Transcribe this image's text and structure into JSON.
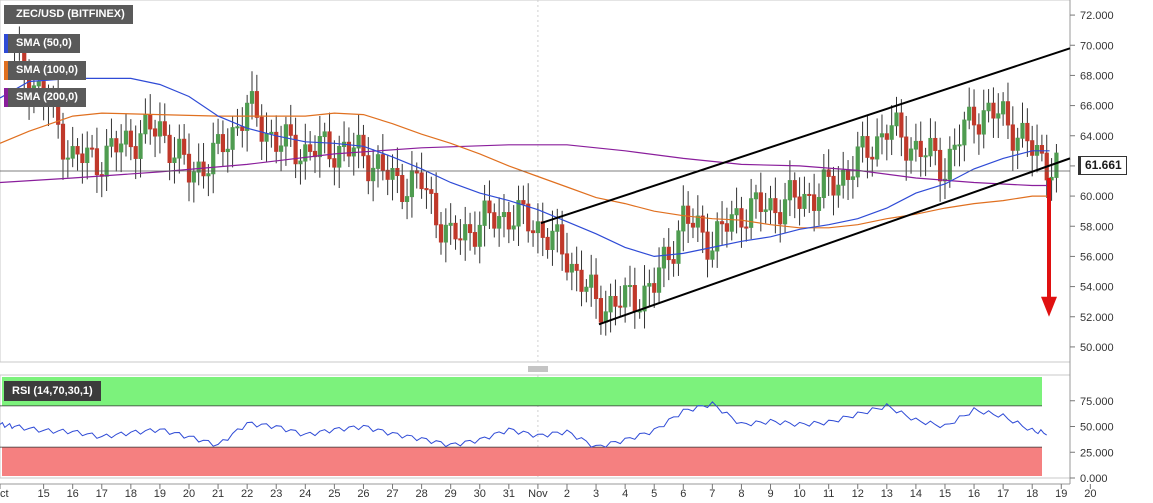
{
  "chart_data": {
    "type": "candlestick",
    "title": "ZEC/USD (BITFINEX)",
    "last_price": "61.661",
    "y_ticks": [
      "72.000",
      "70.000",
      "68.000",
      "66.000",
      "64.000",
      "62.000",
      "60.000",
      "58.000",
      "56.000",
      "54.000",
      "52.000",
      "50.000"
    ],
    "ylim": [
      49,
      73
    ],
    "x_ticks": [
      "Oct",
      "15",
      "16",
      "17",
      "18",
      "19",
      "20",
      "21",
      "22",
      "23",
      "24",
      "25",
      "26",
      "27",
      "28",
      "29",
      "30",
      "31",
      "Nov",
      "2",
      "3",
      "4",
      "5",
      "6",
      "7",
      "8",
      "9",
      "10",
      "11",
      "12",
      "13",
      "14",
      "15",
      "16",
      "17",
      "18",
      "19",
      "20"
    ],
    "x_tick_dates": [
      13.5,
      15,
      16,
      17,
      18,
      19,
      20,
      21,
      22,
      23,
      24,
      25,
      26,
      27,
      28,
      29,
      30,
      31,
      32,
      33,
      34,
      35,
      36,
      37,
      38,
      39,
      40,
      41,
      42,
      43,
      44,
      45,
      46,
      47,
      48,
      49,
      50,
      51
    ],
    "x_range": [
      13.5,
      50.3
    ],
    "x_unit": "day (Oct 1 = 1)",
    "legend": [
      {
        "label": "SMA (50,0)",
        "color": "#2f4bd6"
      },
      {
        "label": "SMA (100,0)",
        "color": "#e07020"
      },
      {
        "label": "SMA (200,0)",
        "color": "#8a1e9c"
      }
    ],
    "colors": {
      "up": "#4f9c50",
      "down": "#c0392b",
      "sma50": "#2f4bd6",
      "sma100": "#e07020",
      "sma200": "#8a1e9c",
      "trendline": "#000000",
      "arrow": "#e01010"
    },
    "candles_daily_approx": [
      {
        "date": 14,
        "close": 69.0
      },
      {
        "date": 15,
        "close": 66.6
      },
      {
        "date": 16,
        "close": 62.5
      },
      {
        "date": 17,
        "close": 62.5
      },
      {
        "date": 18,
        "close": 63.8
      },
      {
        "date": 19,
        "close": 64.5
      },
      {
        "date": 20,
        "close": 61.5
      },
      {
        "date": 21,
        "close": 62.8
      },
      {
        "date": 22,
        "close": 65.8
      },
      {
        "date": 23,
        "close": 63.6
      },
      {
        "date": 24,
        "close": 63.0
      },
      {
        "date": 25,
        "close": 63.2
      },
      {
        "date": 26,
        "close": 62.8
      },
      {
        "date": 27,
        "close": 61.0
      },
      {
        "date": 28,
        "close": 60.8
      },
      {
        "date": 29,
        "close": 57.0
      },
      {
        "date": 30,
        "close": 58.2
      },
      {
        "date": 31,
        "close": 58.8
      },
      {
        "date": 32,
        "close": 58.0
      },
      {
        "date": 33,
        "close": 56.0
      },
      {
        "date": 34,
        "close": 52.8
      },
      {
        "date": 35,
        "close": 53.0
      },
      {
        "date": 36,
        "close": 54.0
      },
      {
        "date": 37,
        "close": 58.5
      },
      {
        "date": 38,
        "close": 57.0
      },
      {
        "date": 39,
        "close": 59.0
      },
      {
        "date": 40,
        "close": 59.3
      },
      {
        "date": 41,
        "close": 59.8
      },
      {
        "date": 42,
        "close": 60.5
      },
      {
        "date": 43,
        "close": 62.3
      },
      {
        "date": 44,
        "close": 64.5
      },
      {
        "date": 45,
        "close": 63.2
      },
      {
        "date": 46,
        "close": 62.0
      },
      {
        "date": 47,
        "close": 65.5
      },
      {
        "date": 48,
        "close": 65.3
      },
      {
        "date": 49,
        "close": 63.0
      },
      {
        "date": 50,
        "close": 61.661
      }
    ],
    "sma50": [
      [
        13.5,
        66.5
      ],
      [
        14.5,
        67.6
      ],
      [
        16,
        67.8
      ],
      [
        18,
        67.8
      ],
      [
        19,
        67.4
      ],
      [
        20,
        66.6
      ],
      [
        21,
        65.3
      ],
      [
        22,
        64.5
      ],
      [
        23,
        64.0
      ],
      [
        24,
        63.6
      ],
      [
        25,
        63.5
      ],
      [
        26,
        63.3
      ],
      [
        27,
        62.6
      ],
      [
        28,
        61.8
      ],
      [
        29,
        60.9
      ],
      [
        30,
        60.2
      ],
      [
        31,
        59.7
      ],
      [
        32,
        59.1
      ],
      [
        33,
        58.3
      ],
      [
        34,
        57.5
      ],
      [
        35,
        56.6
      ],
      [
        36,
        56.0
      ],
      [
        37,
        56.2
      ],
      [
        38,
        56.6
      ],
      [
        39,
        57.0
      ],
      [
        40,
        57.3
      ],
      [
        41,
        57.8
      ],
      [
        42,
        58.1
      ],
      [
        43,
        58.5
      ],
      [
        44,
        59.2
      ],
      [
        45,
        60.2
      ],
      [
        46,
        60.8
      ],
      [
        47,
        61.8
      ],
      [
        48,
        62.5
      ],
      [
        49,
        63.0
      ],
      [
        49.6,
        63.0
      ]
    ],
    "sma100": [
      [
        13.5,
        63.5
      ],
      [
        14.5,
        64.3
      ],
      [
        16,
        65.3
      ],
      [
        17,
        65.5
      ],
      [
        19,
        65.4
      ],
      [
        21,
        65.3
      ],
      [
        24,
        65.3
      ],
      [
        25,
        65.5
      ],
      [
        26,
        65.4
      ],
      [
        27,
        64.8
      ],
      [
        28,
        64.1
      ],
      [
        29,
        63.5
      ],
      [
        30,
        62.8
      ],
      [
        31,
        62.0
      ],
      [
        32,
        61.3
      ],
      [
        33,
        60.6
      ],
      [
        34,
        59.9
      ],
      [
        35,
        59.5
      ],
      [
        36,
        59.0
      ],
      [
        37,
        58.7
      ],
      [
        38,
        58.5
      ],
      [
        39,
        58.4
      ],
      [
        40,
        58.1
      ],
      [
        41,
        57.9
      ],
      [
        42,
        57.9
      ],
      [
        43,
        58.1
      ],
      [
        44,
        58.5
      ],
      [
        45,
        58.8
      ],
      [
        46,
        59.2
      ],
      [
        47,
        59.5
      ],
      [
        48,
        59.7
      ],
      [
        49,
        60.0
      ],
      [
        49.6,
        60.0
      ]
    ],
    "sma200": [
      [
        13.5,
        60.9
      ],
      [
        16,
        61.2
      ],
      [
        19,
        61.6
      ],
      [
        22,
        62.1
      ],
      [
        25,
        62.8
      ],
      [
        28,
        63.2
      ],
      [
        31,
        63.4
      ],
      [
        33,
        63.4
      ],
      [
        35,
        63.0
      ],
      [
        37,
        62.5
      ],
      [
        39,
        62.1
      ],
      [
        41,
        62.0
      ],
      [
        43,
        61.7
      ],
      [
        45,
        61.2
      ],
      [
        47,
        60.9
      ],
      [
        49,
        60.7
      ],
      [
        49.6,
        60.7
      ]
    ],
    "trendlines": [
      {
        "from": [
          32.1,
          58.2
        ],
        "to": [
          50.3,
          69.8
        ]
      },
      {
        "from": [
          34.1,
          51.5
        ],
        "to": [
          50.3,
          62.5
        ]
      }
    ],
    "arrow": {
      "from_price": 61.2,
      "to_price": 52.0
    },
    "rsi": {
      "label": "RSI (14,70,30,1)",
      "y_ticks": [
        "75.000",
        "50.000",
        "25.000",
        "0.000"
      ],
      "ylim": [
        0,
        100
      ],
      "overbought": 70,
      "oversold": 30,
      "values": [
        [
          13.5,
          52
        ],
        [
          14,
          50
        ],
        [
          15,
          46
        ],
        [
          16,
          45
        ],
        [
          17,
          40
        ],
        [
          18,
          44
        ],
        [
          19,
          47
        ],
        [
          20,
          40
        ],
        [
          21,
          32
        ],
        [
          22,
          53
        ],
        [
          23,
          50
        ],
        [
          24,
          42
        ],
        [
          25,
          47
        ],
        [
          26,
          50
        ],
        [
          27,
          43
        ],
        [
          28,
          38
        ],
        [
          29,
          32
        ],
        [
          30,
          37
        ],
        [
          31,
          47
        ],
        [
          32,
          41
        ],
        [
          33,
          45
        ],
        [
          34,
          30
        ],
        [
          35,
          37
        ],
        [
          36,
          46
        ],
        [
          37,
          65
        ],
        [
          38,
          72
        ],
        [
          39,
          52
        ],
        [
          40,
          55
        ],
        [
          41,
          52
        ],
        [
          42,
          54
        ],
        [
          43,
          62
        ],
        [
          44,
          70
        ],
        [
          45,
          56
        ],
        [
          46,
          50
        ],
        [
          47,
          66
        ],
        [
          48,
          60
        ],
        [
          49,
          46
        ],
        [
          49.6,
          43
        ]
      ]
    }
  }
}
